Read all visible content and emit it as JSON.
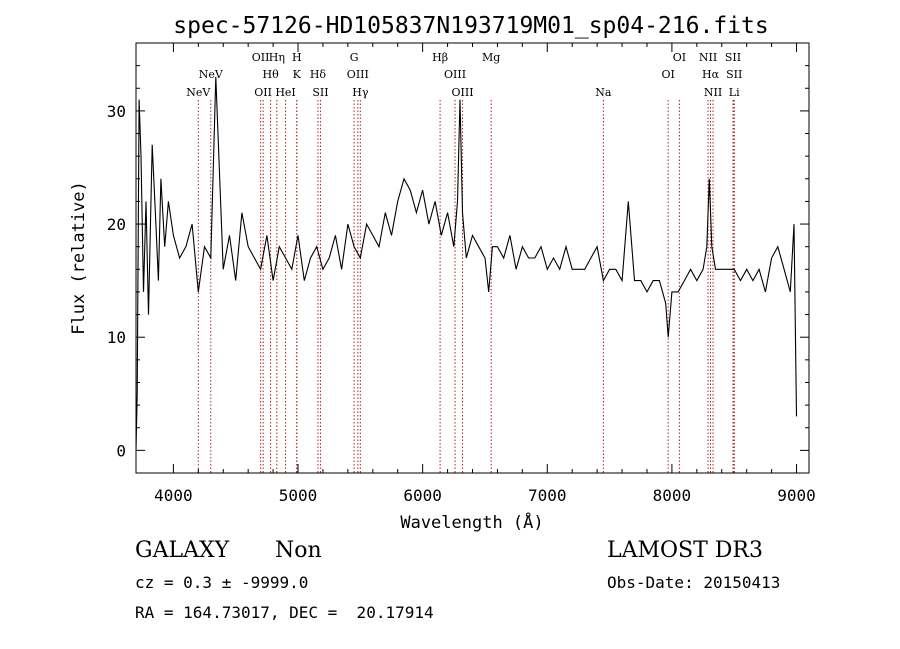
{
  "chart_data": {
    "type": "line",
    "title": "spec-57126-HD105837N193719M01_sp04-216.fits",
    "xlabel": "Wavelength (Å)",
    "ylabel": "Flux (relative)",
    "xlim": [
      3700,
      9100
    ],
    "ylim": [
      -2,
      36
    ],
    "xticks": [
      4000,
      5000,
      6000,
      7000,
      8000,
      9000
    ],
    "yticks": [
      0,
      10,
      20,
      30
    ],
    "colors": {
      "spectrum": "#000000",
      "lines": "#b22222"
    },
    "series": [
      {
        "name": "spectrum",
        "x": [
          3700,
          3710,
          3725,
          3740,
          3760,
          3780,
          3800,
          3830,
          3860,
          3880,
          3900,
          3930,
          3960,
          4000,
          4050,
          4100,
          4150,
          4200,
          4250,
          4300,
          4340,
          4400,
          4450,
          4500,
          4550,
          4600,
          4650,
          4700,
          4750,
          4800,
          4850,
          4900,
          4950,
          5000,
          5050,
          5100,
          5150,
          5200,
          5250,
          5300,
          5350,
          5400,
          5450,
          5500,
          5550,
          5600,
          5650,
          5700,
          5750,
          5800,
          5850,
          5900,
          5950,
          6000,
          6050,
          6100,
          6150,
          6200,
          6250,
          6280,
          6300,
          6320,
          6350,
          6400,
          6450,
          6500,
          6530,
          6560,
          6600,
          6650,
          6700,
          6750,
          6800,
          6850,
          6900,
          6950,
          7000,
          7050,
          7100,
          7150,
          7200,
          7250,
          7300,
          7350,
          7400,
          7450,
          7500,
          7550,
          7600,
          7650,
          7700,
          7750,
          7800,
          7850,
          7900,
          7950,
          7970,
          8000,
          8050,
          8100,
          8150,
          8200,
          8250,
          8280,
          8300,
          8320,
          8350,
          8400,
          8450,
          8500,
          8550,
          8600,
          8650,
          8700,
          8750,
          8800,
          8850,
          8900,
          8950,
          8980,
          9000
        ],
        "y": [
          0,
          5,
          31,
          26,
          14,
          22,
          12,
          27,
          20,
          15,
          24,
          18,
          22,
          19,
          17,
          18,
          20,
          14,
          18,
          17,
          33,
          16,
          19,
          15,
          21,
          18,
          17,
          16,
          19,
          15,
          18,
          17,
          16,
          19,
          15,
          17,
          18,
          16,
          17,
          19,
          16,
          20,
          18,
          17,
          20,
          19,
          18,
          21,
          19,
          22,
          24,
          23,
          21,
          23,
          20,
          22,
          19,
          21,
          18,
          22,
          31,
          21,
          17,
          19,
          18,
          17,
          14,
          18,
          18,
          17,
          19,
          16,
          18,
          17,
          17,
          18,
          16,
          17,
          16,
          18,
          16,
          16,
          16,
          17,
          18,
          15,
          16,
          16,
          15,
          22,
          15,
          15,
          14,
          15,
          15,
          13,
          10,
          14,
          14,
          15,
          16,
          15,
          16,
          18,
          24,
          18,
          16,
          16,
          16,
          16,
          15,
          16,
          15,
          16,
          14,
          17,
          18,
          16,
          14,
          20,
          3
        ]
      }
    ],
    "annotations": [
      {
        "label": "NeV",
        "wavelength": 4200,
        "row": 3
      },
      {
        "label": "NeV",
        "wavelength": 4300,
        "row": 2
      },
      {
        "label": "OII",
        "wavelength": 4700,
        "row": 1
      },
      {
        "label": "OII",
        "wavelength": 4720,
        "row": 3
      },
      {
        "label": "Hθ",
        "wavelength": 4780,
        "row": 2
      },
      {
        "label": "Hη",
        "wavelength": 4830,
        "row": 1
      },
      {
        "label": "HeI",
        "wavelength": 4900,
        "row": 3
      },
      {
        "label": "H",
        "wavelength": 4990,
        "row": 1
      },
      {
        "label": "K",
        "wavelength": 4990,
        "row": 2
      },
      {
        "label": "Hδ",
        "wavelength": 5160,
        "row": 2
      },
      {
        "label": "SII",
        "wavelength": 5180,
        "row": 3
      },
      {
        "label": "G",
        "wavelength": 5450,
        "row": 1
      },
      {
        "label": "OIII",
        "wavelength": 5480,
        "row": 2
      },
      {
        "label": "Hγ",
        "wavelength": 5500,
        "row": 3
      },
      {
        "label": "Hβ",
        "wavelength": 6140,
        "row": 1
      },
      {
        "label": "OIII",
        "wavelength": 6260,
        "row": 2
      },
      {
        "label": "OIII",
        "wavelength": 6320,
        "row": 3
      },
      {
        "label": "Mg",
        "wavelength": 6550,
        "row": 1
      },
      {
        "label": "Na",
        "wavelength": 7450,
        "row": 3
      },
      {
        "label": "OI",
        "wavelength": 7970,
        "row": 2
      },
      {
        "label": "OI",
        "wavelength": 8060,
        "row": 1
      },
      {
        "label": "NII",
        "wavelength": 8290,
        "row": 1
      },
      {
        "label": "Hα",
        "wavelength": 8310,
        "row": 2
      },
      {
        "label": "NII",
        "wavelength": 8330,
        "row": 3
      },
      {
        "label": "SII",
        "wavelength": 8490,
        "row": 1
      },
      {
        "label": "SII",
        "wavelength": 8500,
        "row": 2
      },
      {
        "label": "Li",
        "wavelength": 8500,
        "row": 3
      }
    ]
  },
  "info": {
    "class_label": "GALAXY",
    "subclass_label": "Non",
    "survey": "LAMOST DR3",
    "cz": "cz = 0.3 ± -9999.0",
    "obs_date": "Obs-Date: 20150413",
    "coords": "RA = 164.73017, DEC =  20.17914"
  }
}
